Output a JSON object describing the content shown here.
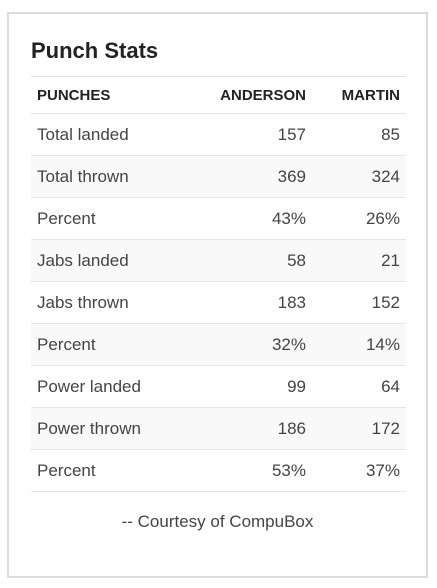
{
  "card": {
    "title": "Punch Stats",
    "footer": "-- Courtesy of CompuBox"
  },
  "table": {
    "headers": [
      "PUNCHES",
      "ANDERSON",
      "MARTIN"
    ],
    "rows": [
      {
        "label": "Total landed",
        "anderson": "157",
        "martin": "85"
      },
      {
        "label": "Total thrown",
        "anderson": "369",
        "martin": "324"
      },
      {
        "label": "Percent",
        "anderson": "43%",
        "martin": "26%"
      },
      {
        "label": "Jabs landed",
        "anderson": "58",
        "martin": "21"
      },
      {
        "label": "Jabs thrown",
        "anderson": "183",
        "martin": "152"
      },
      {
        "label": "Percent",
        "anderson": "32%",
        "martin": "14%"
      },
      {
        "label": "Power landed",
        "anderson": "99",
        "martin": "64"
      },
      {
        "label": "Power thrown",
        "anderson": "186",
        "martin": "172"
      },
      {
        "label": "Percent",
        "anderson": "53%",
        "martin": "37%"
      }
    ]
  },
  "colors": {
    "border": "#dcdcdc",
    "row_stripe": "#f9f9f9",
    "text": "#444444"
  }
}
